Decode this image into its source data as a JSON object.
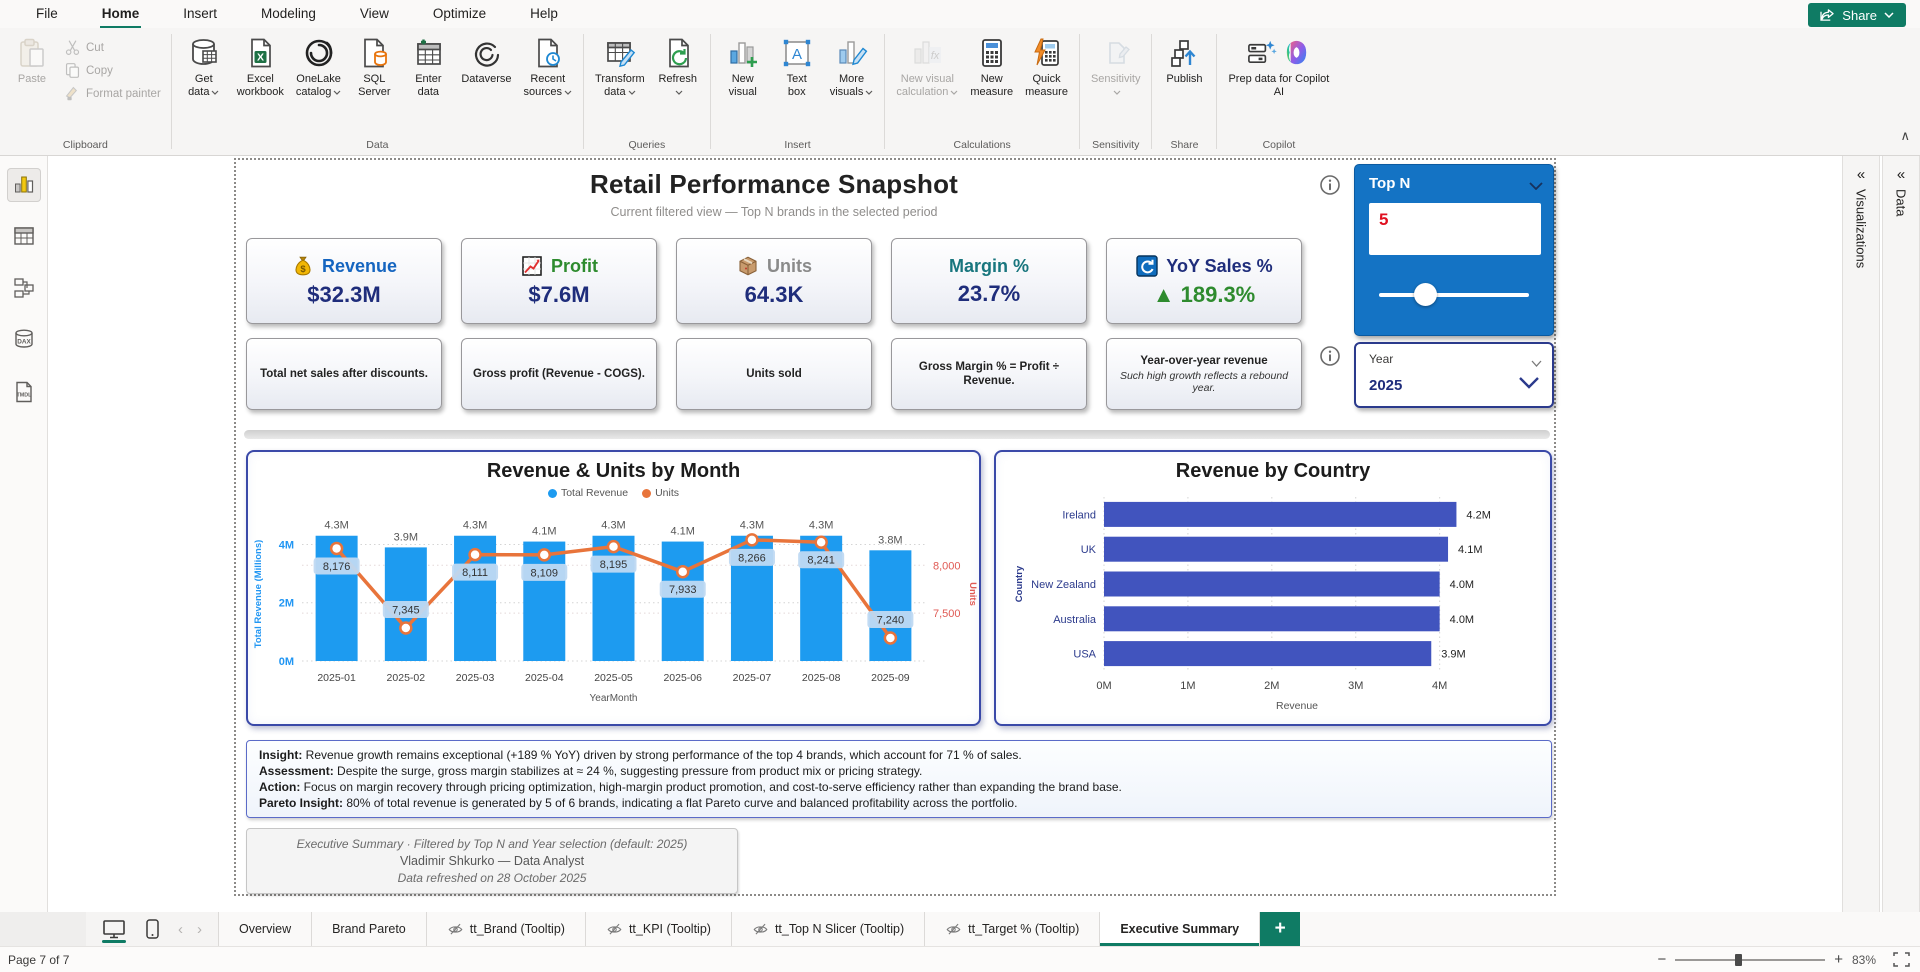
{
  "titlebar": {
    "menu": [
      "File",
      "Home",
      "Insert",
      "Modeling",
      "View",
      "Optimize",
      "Help"
    ],
    "active_menu": "Home",
    "share_label": "Share"
  },
  "ribbon": {
    "collapse_glyph": "∧",
    "groups": [
      {
        "label": "Clipboard",
        "kind": "clipboard",
        "big": [
          {
            "label1": "Paste",
            "label2": "",
            "icon": "paste",
            "disabled": true
          }
        ],
        "small": [
          {
            "label": "Cut",
            "icon": "cut",
            "disabled": true
          },
          {
            "label": "Copy",
            "icon": "copy",
            "disabled": true
          },
          {
            "label": "Format painter",
            "icon": "format-painter",
            "disabled": true
          }
        ]
      },
      {
        "label": "Data",
        "big": [
          {
            "label1": "Get",
            "label2": "data",
            "icon": "get-data",
            "chevron": true
          },
          {
            "label1": "Excel",
            "label2": "workbook",
            "icon": "excel"
          },
          {
            "label1": "OneLake",
            "label2": "catalog",
            "icon": "onelake",
            "chevron": true
          },
          {
            "label1": "SQL",
            "label2": "Server",
            "icon": "sql"
          },
          {
            "label1": "Enter",
            "label2": "data",
            "icon": "enter-data"
          },
          {
            "label1": "Dataverse",
            "label2": "",
            "icon": "dataverse"
          },
          {
            "label1": "Recent",
            "label2": "sources",
            "icon": "recent",
            "chevron": true
          }
        ]
      },
      {
        "label": "Queries",
        "big": [
          {
            "label1": "Transform",
            "label2": "data",
            "icon": "transform",
            "chevron": true
          },
          {
            "label1": "Refresh",
            "label2": "",
            "icon": "refresh",
            "chevron": true
          }
        ]
      },
      {
        "label": "Insert",
        "big": [
          {
            "label1": "New",
            "label2": "visual",
            "icon": "new-visual"
          },
          {
            "label1": "Text",
            "label2": "box",
            "icon": "text-box"
          },
          {
            "label1": "More",
            "label2": "visuals",
            "icon": "more-visuals",
            "chevron": true
          }
        ]
      },
      {
        "label": "Calculations",
        "big": [
          {
            "label1": "New visual",
            "label2": "calculation",
            "icon": "visual-calc",
            "chevron": true,
            "disabled": true
          },
          {
            "label1": "New",
            "label2": "measure",
            "icon": "new-measure"
          },
          {
            "label1": "Quick",
            "label2": "measure",
            "icon": "quick-measure"
          }
        ]
      },
      {
        "label": "Sensitivity",
        "big": [
          {
            "label1": "Sensitivity",
            "label2": "",
            "icon": "sensitivity",
            "chevron": true,
            "disabled": true
          }
        ]
      },
      {
        "label": "Share",
        "big": [
          {
            "label1": "Publish",
            "label2": "",
            "icon": "publish"
          }
        ]
      },
      {
        "label": "Copilot",
        "big": [
          {
            "label1": "Prep data for Copilot",
            "label2": "AI",
            "icon": "prep-copilot",
            "icon2": "copilot"
          }
        ]
      }
    ]
  },
  "sidebar": {
    "views": [
      {
        "name": "report-view",
        "active": true
      },
      {
        "name": "table-view",
        "active": false
      },
      {
        "name": "model-view",
        "active": false
      },
      {
        "name": "dax-query-view",
        "active": false
      },
      {
        "name": "tmdl-view",
        "active": false
      }
    ]
  },
  "panels": {
    "visualizations": "Visualizations",
    "data": "Data",
    "collapse_glyph": "«"
  },
  "page": {
    "title": "Retail Performance Snapshot",
    "subtitle": "Current filtered view — Top N brands in the selected period",
    "kpis": [
      {
        "icon": "moneybag",
        "label": "Revenue",
        "label_color": "#1565C0",
        "value": "$32.3M",
        "value_color": "#1F2D7B",
        "desc": "Total net sales after discounts.",
        "desc2": ""
      },
      {
        "icon": "chart-up",
        "label": "Profit",
        "label_color": "#2E8B2E",
        "value": "$7.6M",
        "value_color": "#1F2D7B",
        "desc": "Gross profit (Revenue - COGS).",
        "desc2": ""
      },
      {
        "icon": "package",
        "label": "Units",
        "label_color": "#8A8A8A",
        "value": "64.3K",
        "value_color": "#1F2D7B",
        "desc": "Units sold",
        "desc2": ""
      },
      {
        "icon": "none",
        "label": "Margin %",
        "label_color": "#19767E",
        "value": "23.7%",
        "value_color": "#1F2D7B",
        "desc": "Gross Margin % = Profit ÷ Revenue.",
        "desc2": ""
      },
      {
        "icon": "refresh-blue",
        "label": "YoY Sales %",
        "label_color": "#1F2D7B",
        "value": "▲ 189.3%",
        "value_color": "#2E8B2E",
        "desc": "Year-over-year revenue",
        "desc2": "Such high growth reflects a rebound year."
      }
    ],
    "slicers": {
      "topn": {
        "title": "Top N",
        "value": "5"
      },
      "year": {
        "label": "Year",
        "value": "2025"
      }
    },
    "insights": [
      {
        "label": "Insight:",
        "text": " Revenue growth remains exceptional (+189 % YoY) driven by strong performance of the top 4 brands, which account for 71 % of sales."
      },
      {
        "label": "Assessment:",
        "text": " Despite the surge, gross margin stabilizes at ≈ 24 %, suggesting pressure from product mix or pricing strategy."
      },
      {
        "label": "Action:",
        "text": " Focus on margin recovery through pricing optimization, high-margin product promotion, and cost-to-serve efficiency rather than expanding the brand base."
      },
      {
        "label": "Pareto Insight:",
        "text": " 80% of total revenue is generated by 5 of 6 brands, indicating a flat Pareto curve and balanced profitability across the portfolio."
      }
    ],
    "footer": [
      "Executive Summary · Filtered by Top N and Year selection (default: 2025)",
      "Vladimir Shkurko — Data Analyst",
      "Data refreshed on 28 October 2025"
    ]
  },
  "chart_data": [
    {
      "type": "combo-bar-line",
      "title": "Revenue & Units by Month",
      "categories": [
        "2025-01",
        "2025-02",
        "2025-03",
        "2025-04",
        "2025-05",
        "2025-06",
        "2025-07",
        "2025-08",
        "2025-09"
      ],
      "series": [
        {
          "name": "Total Revenue",
          "chart": "bar",
          "color": "#1D9BF0",
          "values": [
            4.3,
            3.9,
            4.3,
            4.1,
            4.3,
            4.1,
            4.3,
            4.3,
            3.8
          ],
          "labels": [
            "4.3M",
            "3.9M",
            "4.3M",
            "4.1M",
            "4.3M",
            "4.1M",
            "4.3M",
            "4.3M",
            "3.8M"
          ]
        },
        {
          "name": "Units",
          "chart": "line",
          "color": "#E8743B",
          "values": [
            8176,
            7345,
            8111,
            8109,
            8195,
            7933,
            8266,
            8241,
            7240
          ],
          "labels": [
            "8,176",
            "7,345",
            "8,111",
            "8,109",
            "8,195",
            "7,933",
            "8,266",
            "8,241",
            "7,240"
          ]
        }
      ],
      "xlabel": "YearMonth",
      "y_left_label": "Total Revenue (Millions)",
      "y_left_ticks": [
        {
          "v": 0,
          "t": "0M"
        },
        {
          "v": 2,
          "t": "2M"
        },
        {
          "v": 4,
          "t": "4M"
        }
      ],
      "y_left_max": 4.6,
      "y_right_label": "Units",
      "y_right_ticks": [
        {
          "v": 7500,
          "t": "7,500"
        },
        {
          "v": 8000,
          "t": "8,000"
        }
      ],
      "y_right_range": [
        7000,
        8400
      ],
      "left_axis_color": "#2196F3",
      "right_axis_color": "#E05A54",
      "label_pill_color": "#BFD9F2",
      "legend_position": "top",
      "grid": true
    },
    {
      "type": "bar-horizontal",
      "title": "Revenue by Country",
      "categories": [
        "Ireland",
        "UK",
        "New Zealand",
        "Australia",
        "USA"
      ],
      "values": [
        4.2,
        4.1,
        4.0,
        4.0,
        3.9
      ],
      "labels": [
        "4.2M",
        "4.1M",
        "4.0M",
        "4.0M",
        "3.9M"
      ],
      "xticks": [
        {
          "v": 0,
          "t": "0M"
        },
        {
          "v": 1,
          "t": "1M"
        },
        {
          "v": 2,
          "t": "2M"
        },
        {
          "v": 3,
          "t": "3M"
        },
        {
          "v": 4,
          "t": "4M"
        }
      ],
      "xmax": 4.6,
      "xlabel": "Revenue",
      "ylabel": "Country",
      "bar_color": "#4154BE",
      "category_color": "#2B3A8C",
      "grid": true
    }
  ],
  "tabs": {
    "items": [
      {
        "label": "Overview",
        "tooltip": false,
        "active": false
      },
      {
        "label": "Brand Pareto",
        "tooltip": false,
        "active": false
      },
      {
        "label": "tt_Brand (Tooltip)",
        "tooltip": true,
        "active": false
      },
      {
        "label": "tt_KPI (Tooltip)",
        "tooltip": true,
        "active": false
      },
      {
        "label": "tt_Top N Slicer (Tooltip)",
        "tooltip": true,
        "active": false
      },
      {
        "label": "tt_Target % (Tooltip)",
        "tooltip": true,
        "active": false
      },
      {
        "label": "Executive Summary",
        "tooltip": false,
        "active": true
      }
    ],
    "add_label": "+"
  },
  "statusbar": {
    "page_indicator": "Page 7 of 7",
    "zoom_level": "83%"
  },
  "accent_colors": {
    "teal": "#0F7B64",
    "slicer_blue": "#1473C4",
    "navy": "#1F2D7B"
  }
}
